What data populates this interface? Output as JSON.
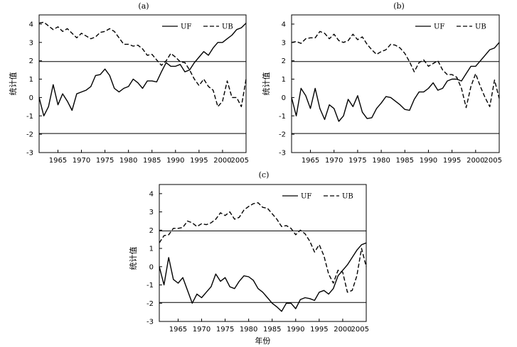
{
  "chart_data": [
    {
      "type": "line",
      "title": "(a)",
      "ylabel": "统计值",
      "xlabel": "",
      "xlim": [
        1961,
        2005
      ],
      "ylim": [
        -3,
        4.5
      ],
      "x_ticks": [
        "1965",
        "1970",
        "1975",
        "1980",
        "1985",
        "1990",
        "1995",
        "2000",
        "2005"
      ],
      "y_ticks": [
        "4",
        "3",
        "2",
        "1",
        "0",
        "-1",
        "-2",
        "-3"
      ],
      "reference_lines": [
        1.96,
        -1.96
      ],
      "legend_position": "top-right",
      "x": [
        1961,
        1962,
        1963,
        1964,
        1965,
        1966,
        1967,
        1968,
        1969,
        1970,
        1971,
        1972,
        1973,
        1974,
        1975,
        1976,
        1977,
        1978,
        1979,
        1980,
        1981,
        1982,
        1983,
        1984,
        1985,
        1986,
        1987,
        1988,
        1989,
        1990,
        1991,
        1992,
        1993,
        1994,
        1995,
        1996,
        1997,
        1998,
        1999,
        2000,
        2001,
        2002,
        2003,
        2004,
        2005
      ],
      "series": [
        {
          "name": "UF",
          "style": "solid",
          "values": [
            0,
            -1,
            -0.5,
            0.7,
            -0.4,
            0.2,
            -0.2,
            -0.7,
            0.2,
            0.3,
            0.4,
            0.6,
            1.2,
            1.25,
            1.55,
            1.2,
            0.5,
            0.3,
            0.5,
            0.6,
            1.0,
            0.8,
            0.5,
            0.9,
            0.9,
            0.85,
            1.4,
            1.9,
            1.7,
            1.7,
            1.8,
            1.4,
            1.5,
            1.9,
            2.2,
            2.5,
            2.3,
            2.7,
            3.0,
            3.0,
            3.2,
            3.4,
            3.7,
            3.8,
            4.05
          ]
        },
        {
          "name": "UB",
          "style": "dashed",
          "values": [
            4.05,
            4.1,
            3.9,
            3.7,
            3.85,
            3.6,
            3.75,
            3.5,
            3.25,
            3.5,
            3.35,
            3.2,
            3.3,
            3.55,
            3.6,
            3.75,
            3.6,
            3.25,
            2.9,
            2.9,
            2.8,
            2.85,
            2.65,
            2.3,
            2.35,
            2.05,
            1.75,
            2.0,
            2.4,
            2.2,
            1.95,
            1.9,
            1.5,
            1.0,
            0.65,
            1.0,
            0.6,
            0.4,
            -0.5,
            -0.2,
            0.9,
            0.0,
            0.0,
            -0.5,
            1.0
          ]
        }
      ]
    },
    {
      "type": "line",
      "title": "(b)",
      "ylabel": "统计值",
      "xlabel": "",
      "xlim": [
        1961,
        2005
      ],
      "ylim": [
        -3,
        4.5
      ],
      "x_ticks": [
        "1965",
        "1970",
        "1975",
        "1980",
        "1985",
        "1990",
        "1995",
        "2000",
        "2005"
      ],
      "y_ticks": [
        "4",
        "3",
        "2",
        "1",
        "0",
        "-1",
        "-2",
        "-3"
      ],
      "reference_lines": [
        1.96,
        -1.96
      ],
      "legend_position": "top-right",
      "x": [
        1961,
        1962,
        1963,
        1964,
        1965,
        1966,
        1967,
        1968,
        1969,
        1970,
        1971,
        1972,
        1973,
        1974,
        1975,
        1976,
        1977,
        1978,
        1979,
        1980,
        1981,
        1982,
        1983,
        1984,
        1985,
        1986,
        1987,
        1988,
        1989,
        1990,
        1991,
        1992,
        1993,
        1994,
        1995,
        1996,
        1997,
        1998,
        1999,
        2000,
        2001,
        2002,
        2003,
        2004,
        2005
      ],
      "series": [
        {
          "name": "UF",
          "style": "solid",
          "values": [
            0,
            -1.0,
            0.5,
            0.1,
            -0.6,
            0.5,
            -0.6,
            -1.2,
            -0.4,
            -0.6,
            -1.3,
            -1.0,
            -0.1,
            -0.5,
            0.1,
            -0.8,
            -1.15,
            -1.1,
            -0.6,
            -0.3,
            0.05,
            0.0,
            -0.2,
            -0.4,
            -0.65,
            -0.7,
            -0.1,
            0.3,
            0.3,
            0.5,
            0.8,
            0.4,
            0.5,
            0.9,
            1.0,
            1.0,
            0.9,
            1.3,
            1.7,
            1.7,
            2.0,
            2.3,
            2.6,
            2.7,
            3.0
          ]
        },
        {
          "name": "UB",
          "style": "dashed",
          "values": [
            3.0,
            3.05,
            2.95,
            3.2,
            3.25,
            3.25,
            3.6,
            3.5,
            3.2,
            3.45,
            3.1,
            3.0,
            3.1,
            3.45,
            3.15,
            3.3,
            2.9,
            2.6,
            2.35,
            2.5,
            2.6,
            2.9,
            2.85,
            2.7,
            2.4,
            1.95,
            1.4,
            1.9,
            2.05,
            1.7,
            1.85,
            2.0,
            1.5,
            1.25,
            1.25,
            1.1,
            0.5,
            -0.55,
            0.6,
            1.3,
            0.6,
            0.0,
            -0.5,
            0.95,
            -0.05
          ]
        }
      ]
    },
    {
      "type": "line",
      "title": "(c)",
      "ylabel": "统计值",
      "xlabel": "年份",
      "xlim": [
        1961,
        2005
      ],
      "ylim": [
        -3,
        4.5
      ],
      "x_ticks": [
        "1965",
        "1970",
        "1975",
        "1980",
        "1985",
        "1990",
        "1995",
        "2000",
        "2005"
      ],
      "y_ticks": [
        "4",
        "3",
        "2",
        "1",
        "0",
        "-1",
        "-2",
        "-3"
      ],
      "reference_lines": [
        1.96,
        -1.96
      ],
      "legend_position": "top-right",
      "x": [
        1961,
        1962,
        1963,
        1964,
        1965,
        1966,
        1967,
        1968,
        1969,
        1970,
        1971,
        1972,
        1973,
        1974,
        1975,
        1976,
        1977,
        1978,
        1979,
        1980,
        1981,
        1982,
        1983,
        1984,
        1985,
        1986,
        1987,
        1988,
        1989,
        1990,
        1991,
        1992,
        1993,
        1994,
        1995,
        1996,
        1997,
        1998,
        1999,
        2000,
        2001,
        2002,
        2003,
        2004,
        2005
      ],
      "series": [
        {
          "name": "UF",
          "style": "solid",
          "values": [
            0,
            -1.0,
            0.5,
            -0.7,
            -0.9,
            -0.6,
            -1.3,
            -2.0,
            -1.5,
            -1.7,
            -1.4,
            -1.1,
            -0.4,
            -0.8,
            -0.6,
            -1.1,
            -1.2,
            -0.8,
            -0.5,
            -0.55,
            -0.75,
            -1.2,
            -1.4,
            -1.7,
            -2.0,
            -2.2,
            -2.45,
            -2.0,
            -2.0,
            -2.3,
            -1.8,
            -1.7,
            -1.75,
            -1.85,
            -1.4,
            -1.3,
            -1.5,
            -1.2,
            -0.5,
            -0.2,
            0.1,
            0.5,
            0.9,
            1.2,
            1.3
          ]
        },
        {
          "name": "UB",
          "style": "dashed",
          "values": [
            1.3,
            1.7,
            1.75,
            2.1,
            2.1,
            2.15,
            2.5,
            2.4,
            2.2,
            2.35,
            2.3,
            2.4,
            2.6,
            2.95,
            2.8,
            3.0,
            2.6,
            2.7,
            3.1,
            3.3,
            3.45,
            3.5,
            3.25,
            3.2,
            2.9,
            2.6,
            2.2,
            2.25,
            2.1,
            1.75,
            2.0,
            1.8,
            1.4,
            0.8,
            1.2,
            0.6,
            -0.4,
            -0.9,
            -0.2,
            -0.3,
            -1.4,
            -1.3,
            -0.5,
            1.0,
            0.0
          ]
        }
      ]
    }
  ]
}
